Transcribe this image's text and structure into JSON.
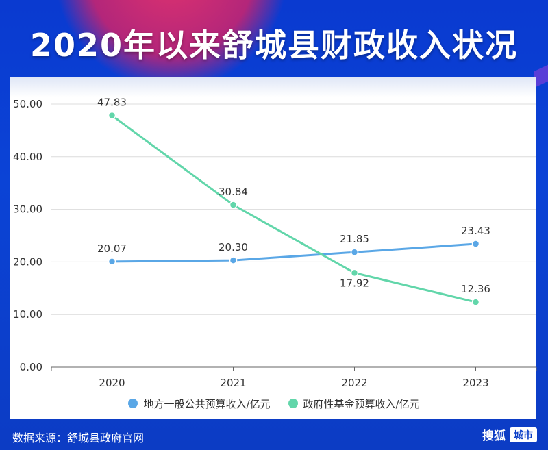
{
  "title": "2020年以来舒城县财政收入状况",
  "footer": {
    "source": "数据来源：舒城县政府官网",
    "brand_main": "搜狐",
    "brand_box": "城市"
  },
  "colors": {
    "series1": "#5aa7e6",
    "series2": "#62d6aa",
    "background": "#0b3fc7"
  },
  "chart_data": {
    "type": "line",
    "title": "2020年以来舒城县财政收入状况",
    "categories": [
      "2020",
      "2021",
      "2022",
      "2023"
    ],
    "y_ticks": [
      "0.00",
      "10.00",
      "20.00",
      "30.00",
      "40.00",
      "50.00"
    ],
    "ylim": [
      0,
      50
    ],
    "grid": true,
    "legend_position": "bottom",
    "series": [
      {
        "name": "地方一般公共预算收入/亿元",
        "values": [
          20.07,
          20.3,
          21.85,
          23.43
        ],
        "labels": [
          "20.07",
          "20.30",
          "21.85",
          "23.43"
        ],
        "color": "#5aa7e6"
      },
      {
        "name": "政府性基金预算收入/亿元",
        "values": [
          47.83,
          30.84,
          17.92,
          12.36
        ],
        "labels": [
          "47.83",
          "30.84",
          "17.92",
          "12.36"
        ],
        "color": "#62d6aa"
      }
    ]
  }
}
